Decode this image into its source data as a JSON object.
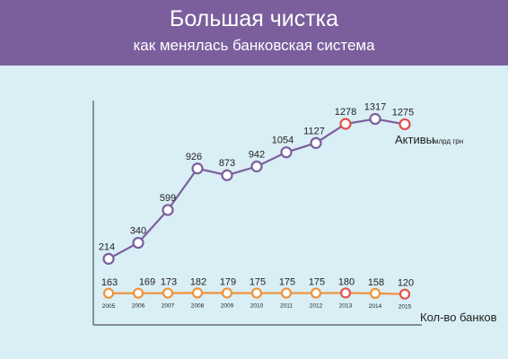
{
  "header": {
    "title": "Большая чистка",
    "subtitle": "как менялась банковская система"
  },
  "colors": {
    "header_bg": "#7b5f9d",
    "panel_bg": "#d9eef5",
    "assets_line": "#7b5f9d",
    "banks_line": "#f0923a",
    "highlight_marker": "#e0524b"
  },
  "chart_data": {
    "type": "line",
    "title": "Большая чистка",
    "subtitle": "как менялась банковская система",
    "x": [
      "2005",
      "2006",
      "2007",
      "2008",
      "2009",
      "2010",
      "2011",
      "2012",
      "2013",
      "2014",
      "2015"
    ],
    "series": [
      {
        "name": "Активы",
        "unit": "млрд грн",
        "values": [
          214,
          340,
          599,
          926,
          873,
          942,
          1054,
          1127,
          1278,
          1317,
          1275
        ],
        "highlighted_points": [
          "2013",
          "2015"
        ]
      },
      {
        "name": "Кол-во банков",
        "values": [
          163,
          169,
          173,
          182,
          179,
          175,
          175,
          175,
          180,
          158,
          120
        ],
        "highlighted_points": [
          "2013",
          "2015"
        ]
      }
    ],
    "grid": false,
    "legend": "inline-labels-right"
  }
}
